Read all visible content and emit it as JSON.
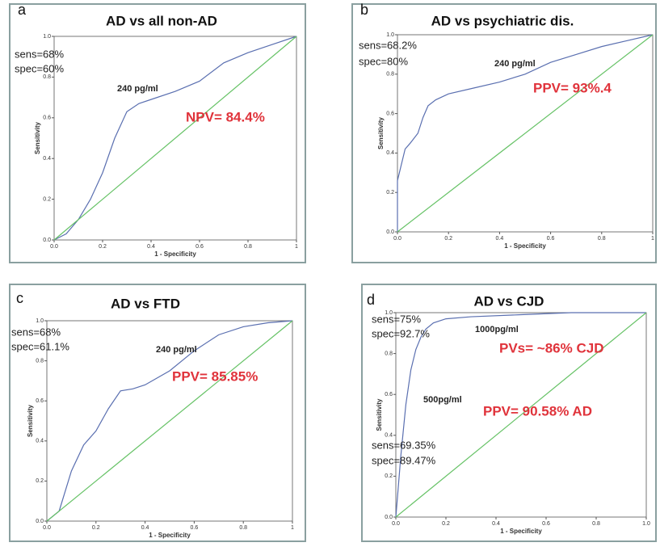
{
  "chart_data": [
    {
      "type": "line",
      "panel_label": "a",
      "title": "AD vs all non-AD",
      "xlabel": "1 - Specificity",
      "ylabel": "Sensitivity",
      "xlim": [
        0,
        1
      ],
      "ylim": [
        0,
        1
      ],
      "xticks": [
        {
          "value": 0,
          "label": "0.0"
        },
        0.2,
        0.4,
        0.6,
        0.8,
        1
      ],
      "yticks": [
        {
          "value": 0,
          "label": "0.0"
        },
        0.2,
        0.4,
        0.6,
        0.8,
        {
          "value": 1,
          "label": "1.0"
        }
      ],
      "annotations": [
        "sens=68%",
        "spec=60%",
        "240 pg/ml",
        "NPV= 84.4%"
      ],
      "series": [
        {
          "color": "#5a6fb0",
          "x": [
            0,
            0.05,
            0.1,
            0.15,
            0.2,
            0.25,
            0.3,
            0.35,
            0.4,
            0.5,
            0.6,
            0.7,
            0.8,
            0.9,
            1
          ],
          "values": [
            0,
            0.03,
            0.1,
            0.2,
            0.33,
            0.5,
            0.63,
            0.67,
            0.69,
            0.73,
            0.78,
            0.87,
            0.92,
            0.96,
            1
          ]
        },
        {
          "color": "#66c266",
          "x": [
            0,
            1
          ],
          "values": [
            0,
            1
          ]
        }
      ]
    },
    {
      "type": "line",
      "panel_label": "b",
      "title": "AD vs psychiatric dis.",
      "xlabel": "1 - Specificity",
      "ylabel": "Sensitivity",
      "xlim": [
        0,
        1
      ],
      "ylim": [
        0,
        1
      ],
      "xticks": [
        {
          "value": 0,
          "label": "0.0"
        },
        0.2,
        0.4,
        0.6,
        0.8,
        1
      ],
      "yticks": [
        {
          "value": 0,
          "label": "0.0"
        },
        0.2,
        0.4,
        0.6,
        0.8,
        {
          "value": 1,
          "label": "1.0"
        }
      ],
      "annotations": [
        "sens=68.2%",
        "spec=80%",
        "240 pg/ml",
        "PPV= 93%.4"
      ],
      "series": [
        {
          "color": "#5a6fb0",
          "x": [
            0,
            0,
            0.03,
            0.05,
            0.08,
            0.1,
            0.12,
            0.15,
            0.2,
            0.3,
            0.4,
            0.5,
            0.6,
            0.7,
            0.8,
            0.9,
            1
          ],
          "values": [
            0,
            0.26,
            0.42,
            0.45,
            0.5,
            0.58,
            0.64,
            0.67,
            0.7,
            0.73,
            0.76,
            0.8,
            0.86,
            0.9,
            0.94,
            0.97,
            1
          ]
        },
        {
          "color": "#66c266",
          "x": [
            0,
            1
          ],
          "values": [
            0,
            1
          ]
        }
      ]
    },
    {
      "type": "line",
      "panel_label": "c",
      "title": "AD vs FTD",
      "xlabel": "1 - Specificity",
      "ylabel": "Sensitivity",
      "xlim": [
        0,
        1
      ],
      "ylim": [
        0,
        1
      ],
      "xticks": [
        {
          "value": 0,
          "label": "0.0"
        },
        0.2,
        0.4,
        0.6,
        0.8,
        1
      ],
      "yticks": [
        {
          "value": 0,
          "label": "0.0"
        },
        0.2,
        0.4,
        0.6,
        0.8,
        {
          "value": 1,
          "label": "1.0"
        }
      ],
      "annotations": [
        "sens=68%",
        "spec=61.1%",
        "240 pg/ml",
        "PPV= 85.85%"
      ],
      "series": [
        {
          "color": "#5a6fb0",
          "x": [
            0,
            0.05,
            0.1,
            0.15,
            0.2,
            0.25,
            0.3,
            0.35,
            0.4,
            0.5,
            0.6,
            0.7,
            0.8,
            0.9,
            1
          ],
          "values": [
            0,
            0.05,
            0.25,
            0.38,
            0.45,
            0.56,
            0.65,
            0.66,
            0.68,
            0.75,
            0.85,
            0.93,
            0.97,
            0.99,
            1
          ]
        },
        {
          "color": "#66c266",
          "x": [
            0,
            1
          ],
          "values": [
            0,
            1
          ]
        }
      ]
    },
    {
      "type": "line",
      "panel_label": "d",
      "title": "AD vs CJD",
      "xlabel": "1 - Specificity",
      "ylabel": "Sensitivity",
      "xlim": [
        0,
        1
      ],
      "ylim": [
        0,
        1
      ],
      "xticks": [
        {
          "value": 0,
          "label": "0.0"
        },
        0.2,
        0.4,
        0.6,
        0.8,
        {
          "value": 1,
          "label": "1.0"
        }
      ],
      "yticks": [
        {
          "value": 0,
          "label": "0.0"
        },
        0.2,
        0.4,
        0.6,
        0.8,
        {
          "value": 1,
          "label": "1.0"
        }
      ],
      "annotations": [
        "sens=75%",
        "spec=92.7%",
        "1000pg/ml",
        "PVs= ~86% CJD",
        "500pg/ml",
        "PPV= 90.58% AD",
        "sens=69.35%",
        "spec=89.47%"
      ],
      "series": [
        {
          "color": "#5a6fb0",
          "x": [
            0,
            0.02,
            0.04,
            0.06,
            0.08,
            0.1,
            0.12,
            0.15,
            0.2,
            0.3,
            0.5,
            0.7,
            1
          ],
          "values": [
            0,
            0.3,
            0.55,
            0.72,
            0.82,
            0.88,
            0.92,
            0.95,
            0.97,
            0.98,
            0.99,
            1,
            1
          ]
        },
        {
          "color": "#66c266",
          "x": [
            0,
            1
          ],
          "values": [
            0,
            1
          ]
        }
      ]
    }
  ]
}
